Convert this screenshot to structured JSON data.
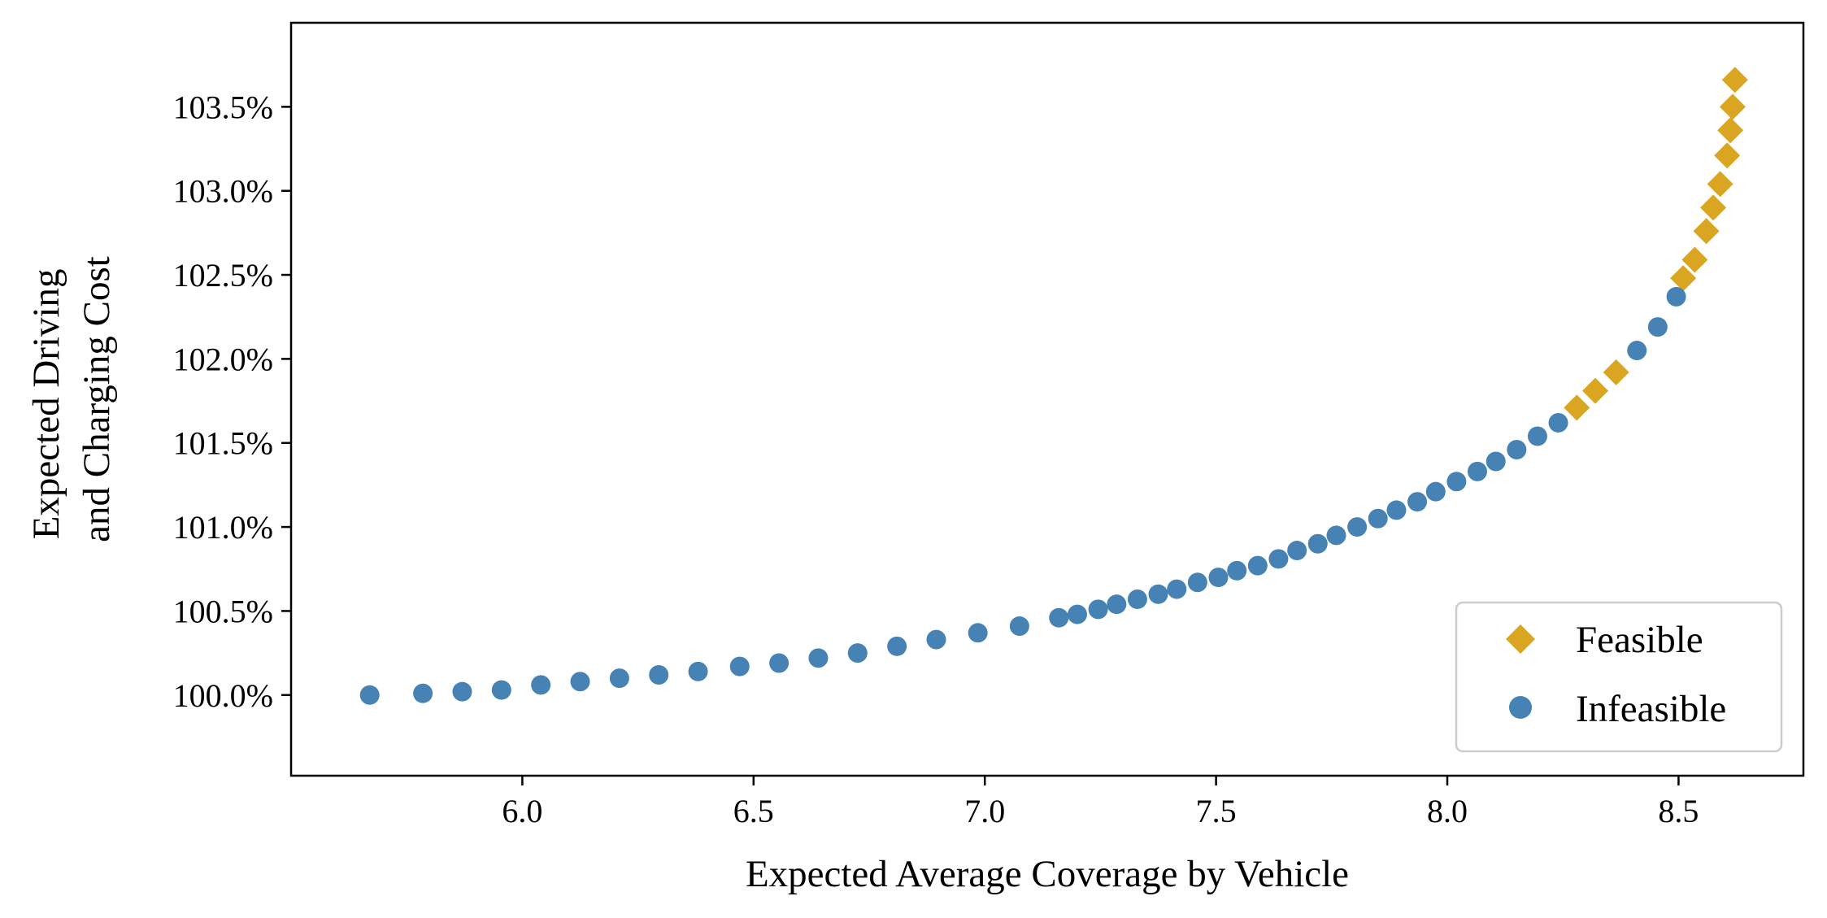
{
  "chart_data": {
    "type": "scatter",
    "xlabel": "Expected Average Coverage by Vehicle",
    "ylabel": [
      "Expected Driving",
      "and Charging Cost"
    ],
    "xlim": [
      5.5,
      8.77
    ],
    "ylim": [
      99.52,
      104.0
    ],
    "xticks": [
      6.0,
      6.5,
      7.0,
      7.5,
      8.0,
      8.5
    ],
    "xtick_labels": [
      "6.0",
      "6.5",
      "7.0",
      "7.5",
      "8.0",
      "8.5"
    ],
    "yticks": [
      100.0,
      100.5,
      101.0,
      101.5,
      102.0,
      102.5,
      103.0,
      103.5
    ],
    "ytick_labels": [
      "100.0%",
      "100.5%",
      "101.0%",
      "101.5%",
      "102.0%",
      "102.5%",
      "103.0%",
      "103.5%"
    ],
    "grid": false,
    "legend_position": "bottom-right",
    "series": [
      {
        "name": "Feasible",
        "marker": "diamond",
        "color": "#DAA520",
        "x": [
          8.28,
          8.32,
          8.365,
          8.51,
          8.535,
          8.56,
          8.575,
          8.59,
          8.605,
          8.612,
          8.617,
          8.622
        ],
        "y": [
          101.71,
          101.81,
          101.92,
          102.48,
          102.59,
          102.76,
          102.9,
          103.04,
          103.21,
          103.36,
          103.5,
          103.66
        ]
      },
      {
        "name": "Infeasible",
        "marker": "circle",
        "color": "#4682B4",
        "x": [
          5.67,
          5.785,
          5.87,
          5.955,
          6.04,
          6.125,
          6.21,
          6.295,
          6.38,
          6.47,
          6.555,
          6.64,
          6.725,
          6.81,
          6.895,
          6.985,
          7.075,
          7.16,
          7.2,
          7.245,
          7.285,
          7.33,
          7.375,
          7.415,
          7.46,
          7.505,
          7.545,
          7.59,
          7.635,
          7.675,
          7.72,
          7.76,
          7.805,
          7.85,
          7.89,
          7.935,
          7.975,
          8.02,
          8.065,
          8.105,
          8.15,
          8.195,
          8.24,
          8.41,
          8.455,
          8.495
        ],
        "y": [
          100.0,
          100.01,
          100.02,
          100.03,
          100.06,
          100.08,
          100.1,
          100.12,
          100.14,
          100.17,
          100.19,
          100.22,
          100.25,
          100.29,
          100.33,
          100.37,
          100.41,
          100.46,
          100.48,
          100.51,
          100.54,
          100.57,
          100.6,
          100.63,
          100.67,
          100.7,
          100.74,
          100.77,
          100.81,
          100.86,
          100.9,
          100.95,
          101.0,
          101.05,
          101.1,
          101.15,
          101.21,
          101.27,
          101.33,
          101.39,
          101.46,
          101.54,
          101.62,
          102.05,
          102.19,
          102.37
        ]
      }
    ]
  }
}
